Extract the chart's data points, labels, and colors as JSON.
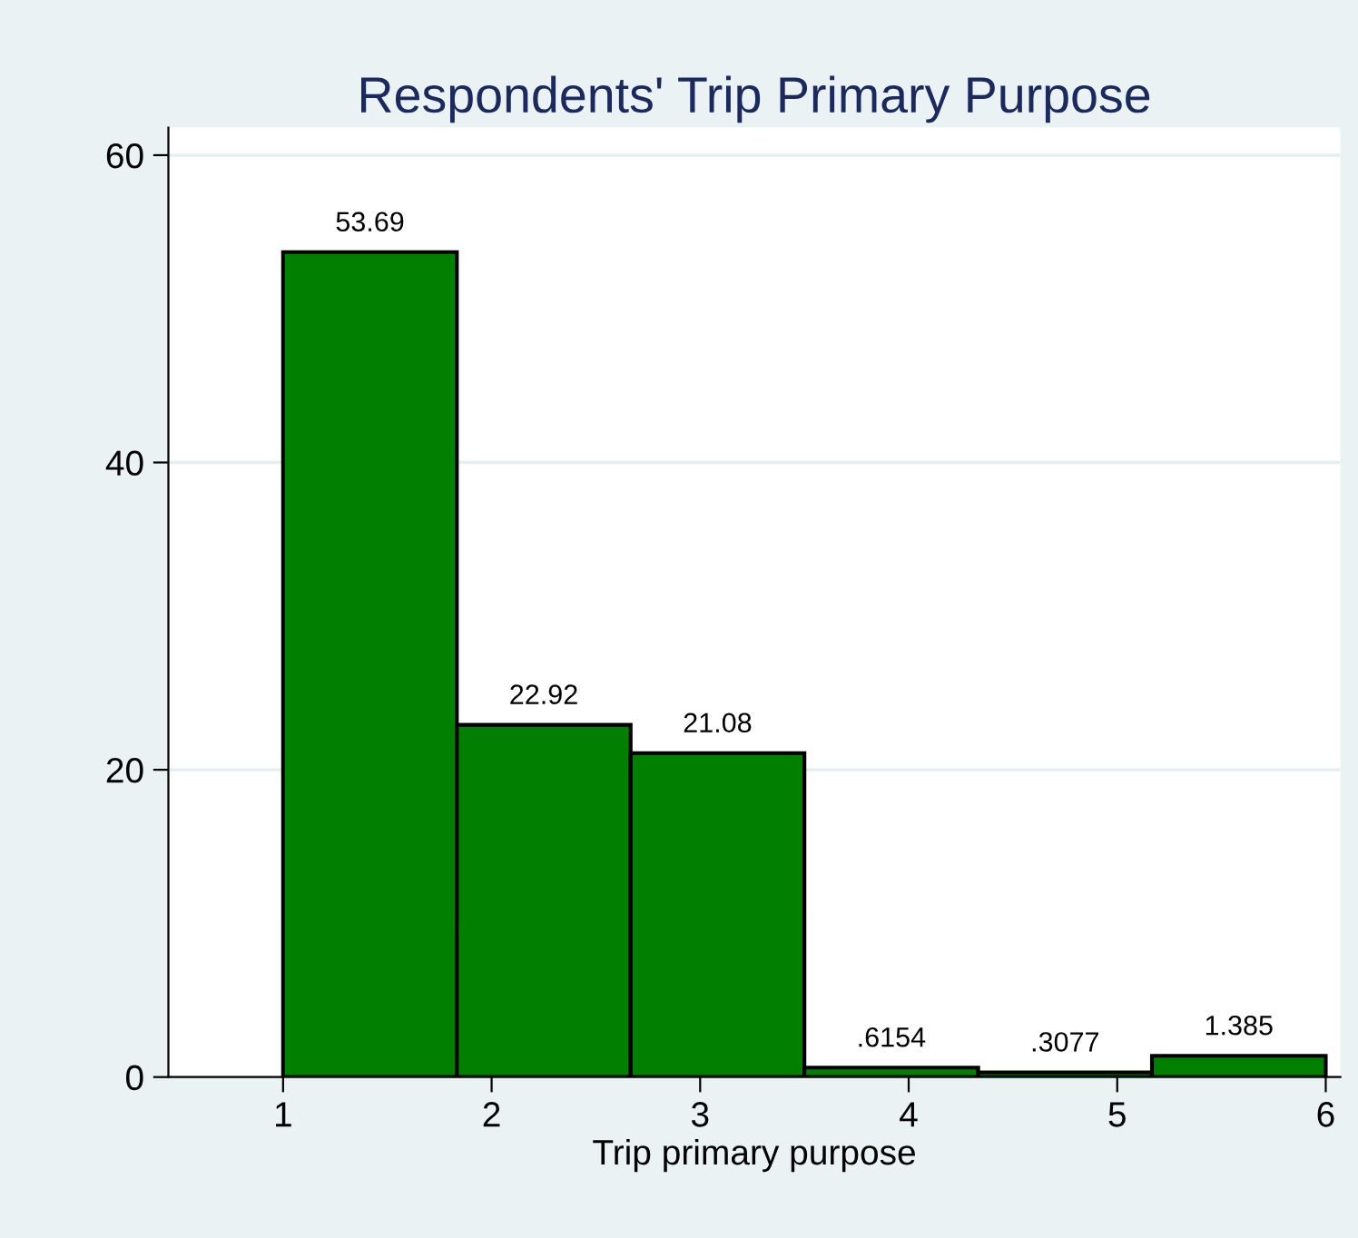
{
  "chart_data": {
    "type": "histogram",
    "title": "Respondents' Trip Primary Purpose",
    "xlabel": "Trip primary purpose",
    "bins": [
      1,
      1.8333,
      2.6667,
      3.5,
      4.3333,
      5.1667,
      6
    ],
    "values": [
      53.69,
      22.92,
      21.08,
      0.6154,
      0.3077,
      1.385
    ],
    "value_labels": [
      "53.69",
      "22.92",
      "21.08",
      ".6154",
      ".3077",
      "1.385"
    ],
    "color": "#007f00",
    "xlim": [
      0.45,
      6.07
    ],
    "xticks": [
      1,
      2,
      3,
      4,
      5,
      6
    ],
    "ylim": [
      0,
      61.8
    ],
    "yticks": [
      0,
      20,
      40,
      60
    ],
    "grid": "y"
  }
}
